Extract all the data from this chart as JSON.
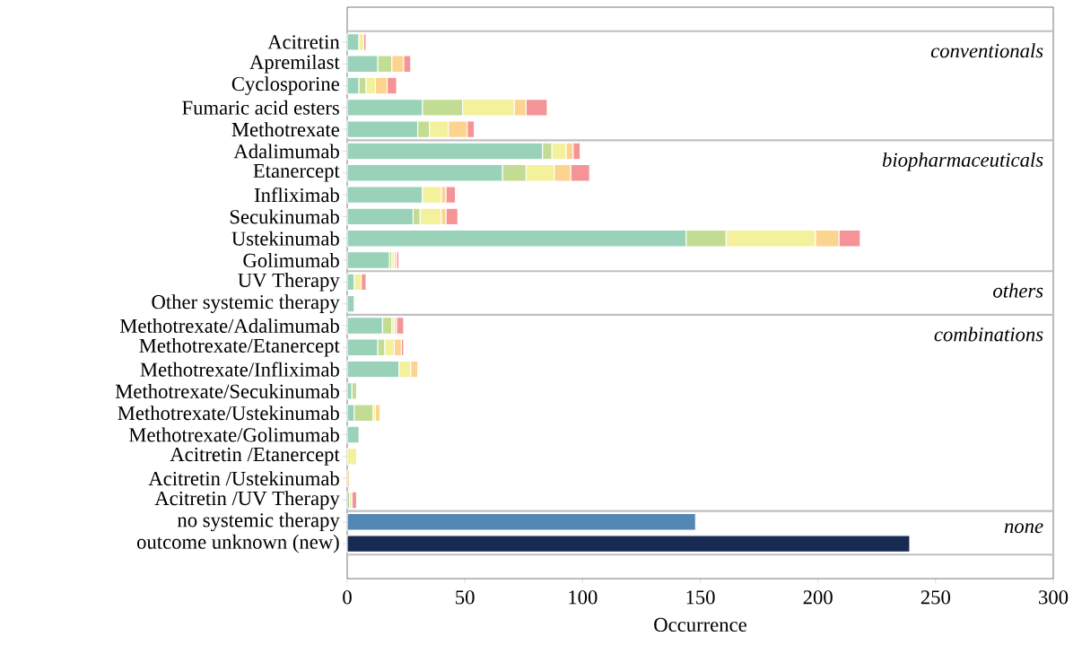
{
  "chart_data": {
    "type": "bar",
    "orientation": "horizontal",
    "stacked": true,
    "xlabel": "Occurrence",
    "categories": [
      "Acitretin",
      "Apremilast",
      "Cyclosporine",
      "Fumaric acid esters",
      "Methotrexate",
      "Adalimumab",
      "Etanercept",
      "Infliximab",
      "Secukinumab",
      "Ustekinumab",
      "Golimumab",
      "UV Therapy",
      "Other systemic therapy",
      "Methotrexate/Adalimumab",
      "Methotrexate/Etanercept",
      "Methotrexate/Infliximab",
      "Methotrexate/Secukinumab",
      "Methotrexate/Ustekinumab",
      "Methotrexate/Golimumab",
      "Acitretin /Etanercept",
      "Acitretin /Ustekinumab",
      "Acitretin /UV Therapy",
      "no systemic therapy",
      "outcome unknown (new)"
    ],
    "series": [
      {
        "color": "#99d2b9",
        "values": [
          5,
          13,
          5,
          32,
          30,
          83,
          66,
          32,
          28,
          144,
          18,
          3,
          3,
          15,
          13,
          22,
          2,
          3,
          5,
          null,
          null,
          1,
          null,
          null
        ]
      },
      {
        "color": "#c2dd93",
        "values": [
          null,
          6,
          3,
          17,
          5,
          4,
          10,
          null,
          3,
          17,
          1,
          null,
          null,
          4,
          3,
          null,
          2,
          8,
          null,
          null,
          null,
          null,
          null,
          null
        ]
      },
      {
        "color": "#f3f19c",
        "values": [
          2,
          null,
          4,
          22,
          8,
          6,
          12,
          8,
          9,
          38,
          1,
          3,
          null,
          1,
          4,
          5,
          null,
          1,
          null,
          4,
          null,
          1,
          null,
          null
        ]
      },
      {
        "color": "#fdd48f",
        "values": [
          null,
          5,
          5,
          5,
          8,
          3,
          7,
          2,
          2,
          10,
          1,
          null,
          null,
          1,
          3,
          3,
          null,
          2,
          null,
          null,
          1,
          null,
          null,
          null
        ]
      },
      {
        "color": "#f59496",
        "values": [
          1,
          3,
          4,
          9,
          3,
          3,
          8,
          4,
          5,
          9,
          1,
          2,
          null,
          3,
          1,
          null,
          null,
          null,
          null,
          null,
          null,
          2,
          null,
          null
        ]
      },
      {
        "color": "#5387b4",
        "values": [
          null,
          null,
          null,
          null,
          null,
          null,
          null,
          null,
          null,
          null,
          null,
          null,
          null,
          null,
          null,
          null,
          null,
          null,
          null,
          null,
          null,
          null,
          148,
          null
        ]
      },
      {
        "color": "#172b52",
        "values": [
          null,
          null,
          null,
          null,
          null,
          null,
          null,
          null,
          null,
          null,
          null,
          null,
          null,
          null,
          null,
          null,
          null,
          null,
          null,
          null,
          null,
          null,
          null,
          239
        ]
      }
    ],
    "xlim": [
      0,
      300
    ],
    "xticks": [
      0,
      50,
      100,
      150,
      200,
      250,
      300
    ],
    "annotations": [
      "conventionals",
      "biopharmaceuticals",
      "others",
      "combinations",
      "none"
    ]
  }
}
